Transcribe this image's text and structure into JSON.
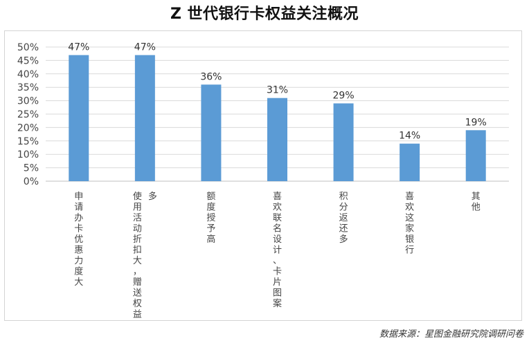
{
  "title": "Z 世代银行卡权益关注概况",
  "source": "数据来源：星图金融研究院调研问卷",
  "colors": {
    "bar": "#5b9bd5",
    "grid": "#d9d9d9",
    "axis": "#bfbfbf"
  },
  "chart_data": {
    "type": "bar",
    "title": "Z 世代银行卡权益关注概况",
    "xlabel": "",
    "ylabel": "",
    "ylim": [
      0,
      50
    ],
    "yticks": [
      "0%",
      "5%",
      "10%",
      "15%",
      "20%",
      "25%",
      "30%",
      "35%",
      "40%",
      "45%",
      "50%"
    ],
    "grid": true,
    "categories": [
      "申请办卡优惠力度大",
      "使用活动折扣大，赠送权益多",
      "额度授予高",
      "喜欢联名设计、卡片图案",
      "积分返还多",
      "喜欢这家银行",
      "其他"
    ],
    "values": [
      47,
      47,
      36,
      31,
      29,
      14,
      19
    ],
    "data_labels": [
      "47%",
      "47%",
      "36%",
      "31%",
      "29%",
      "14%",
      "19%"
    ]
  }
}
